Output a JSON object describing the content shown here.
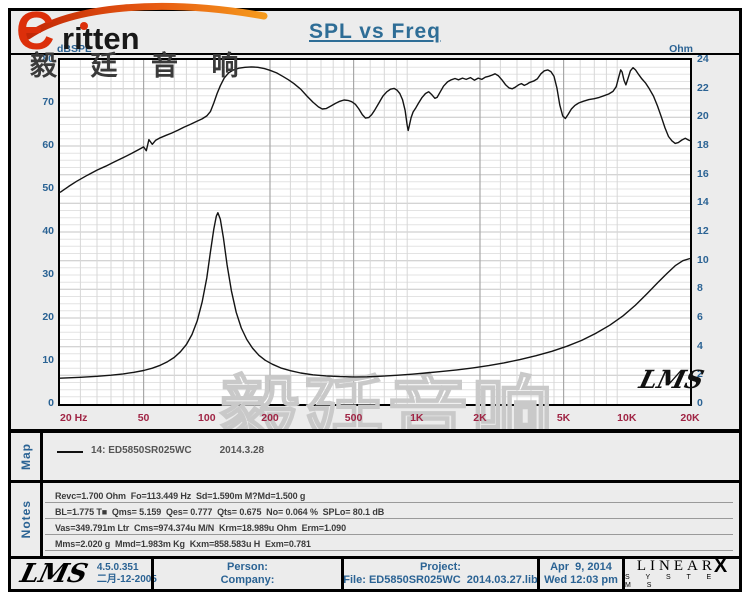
{
  "brand": {
    "glyph": "Є",
    "wordmark": "ritten",
    "cn_text": "毅 廷 音 响"
  },
  "header": {
    "title": "SPL vs Freq"
  },
  "chart_data": {
    "type": "line",
    "title": "SPL vs Freq",
    "watermark": "毅廷音响",
    "signature": "LMS",
    "x_axis": {
      "label": "Hz",
      "scale": "log",
      "min": 20,
      "max": 20000,
      "tick_values": [
        20,
        50,
        100,
        200,
        500,
        1000,
        2000,
        5000,
        10000,
        20000
      ],
      "tick_labels": [
        "20 Hz",
        "50",
        "100",
        "200",
        "500",
        "1K",
        "2K",
        "5K",
        "10K",
        "20K"
      ]
    },
    "y_left": {
      "label": "dBSPL",
      "min": 0,
      "max": 80,
      "ticks": [
        80,
        70,
        60,
        50,
        40,
        30,
        20,
        10,
        0
      ]
    },
    "y_right": {
      "label": "Ohm",
      "min": 0,
      "max": 24,
      "ticks": [
        24,
        22,
        20,
        18,
        16,
        14,
        12,
        10,
        8,
        6,
        4,
        2,
        0
      ]
    },
    "series": [
      {
        "name": "SPL (dB)",
        "axis": "left",
        "points": [
          [
            20,
            49.2
          ],
          [
            22,
            50.6
          ],
          [
            24,
            51.8
          ],
          [
            27,
            53.2
          ],
          [
            30,
            54.4
          ],
          [
            33,
            55.3
          ],
          [
            36,
            56.2
          ],
          [
            40,
            57.3
          ],
          [
            44,
            58.3
          ],
          [
            48,
            59.3
          ],
          [
            50,
            59.8
          ],
          [
            51.5,
            58.9
          ],
          [
            53,
            61.5
          ],
          [
            55,
            60.4
          ],
          [
            57,
            61.3
          ],
          [
            60,
            61.9
          ],
          [
            64,
            62.5
          ],
          [
            68,
            63
          ],
          [
            73,
            63.7
          ],
          [
            78,
            64.4
          ],
          [
            84,
            65.1
          ],
          [
            90,
            65.8
          ],
          [
            95,
            66.3
          ],
          [
            100,
            67
          ],
          [
            104,
            68
          ],
          [
            108,
            70
          ],
          [
            112,
            72.2
          ],
          [
            116,
            74
          ],
          [
            121,
            75.8
          ],
          [
            127,
            77
          ],
          [
            134,
            77.7
          ],
          [
            142,
            78.1
          ],
          [
            152,
            78.3
          ],
          [
            163,
            78.4
          ],
          [
            175,
            78.3
          ],
          [
            188,
            78
          ],
          [
            200,
            77.6
          ],
          [
            215,
            77
          ],
          [
            230,
            76.2
          ],
          [
            245,
            75.4
          ],
          [
            260,
            74.5
          ],
          [
            280,
            73.2
          ],
          [
            300,
            71.6
          ],
          [
            320,
            70.2
          ],
          [
            340,
            69.1
          ],
          [
            355,
            68.6
          ],
          [
            370,
            68.7
          ],
          [
            390,
            69.3
          ],
          [
            410,
            69.9
          ],
          [
            430,
            70.4
          ],
          [
            450,
            70.7
          ],
          [
            470,
            70.6
          ],
          [
            490,
            70.3
          ],
          [
            510,
            69.7
          ],
          [
            530,
            68.6
          ],
          [
            550,
            67.3
          ],
          [
            570,
            66.5
          ],
          [
            590,
            66.6
          ],
          [
            610,
            67.3
          ],
          [
            630,
            68.3
          ],
          [
            660,
            70
          ],
          [
            690,
            71.6
          ],
          [
            720,
            72.6
          ],
          [
            750,
            73.2
          ],
          [
            780,
            73.4
          ],
          [
            805,
            73
          ],
          [
            830,
            72.2
          ],
          [
            855,
            70.8
          ],
          [
            880,
            68.3
          ],
          [
            900,
            64.8
          ],
          [
            910,
            63.6
          ],
          [
            920,
            64.6
          ],
          [
            940,
            66.6
          ],
          [
            960,
            67.9
          ],
          [
            990,
            68.9
          ],
          [
            1020,
            70
          ],
          [
            1060,
            71.3
          ],
          [
            1100,
            72.2
          ],
          [
            1140,
            72.6
          ],
          [
            1180,
            71.9
          ],
          [
            1220,
            71.1
          ],
          [
            1250,
            71.3
          ],
          [
            1290,
            72.5
          ],
          [
            1340,
            73.9
          ],
          [
            1400,
            74.9
          ],
          [
            1460,
            75.4
          ],
          [
            1520,
            75.7
          ],
          [
            1580,
            75.4
          ],
          [
            1650,
            75.8
          ],
          [
            1720,
            75.5
          ],
          [
            1800,
            75.9
          ],
          [
            1880,
            75.3
          ],
          [
            1960,
            75.8
          ],
          [
            2040,
            75.5
          ],
          [
            2120,
            76
          ],
          [
            2200,
            76.2
          ],
          [
            2280,
            76.5
          ],
          [
            2360,
            76.8
          ],
          [
            2450,
            76.3
          ],
          [
            2550,
            75.3
          ],
          [
            2650,
            74.2
          ],
          [
            2750,
            73.5
          ],
          [
            2850,
            73.3
          ],
          [
            2950,
            73.7
          ],
          [
            3050,
            74.2
          ],
          [
            3150,
            74.5
          ],
          [
            3250,
            74.1
          ],
          [
            3350,
            74.4
          ],
          [
            3450,
            74.8
          ],
          [
            3600,
            75.1
          ],
          [
            3750,
            75.6
          ],
          [
            3900,
            76.8
          ],
          [
            4050,
            77.5
          ],
          [
            4200,
            77.7
          ],
          [
            4350,
            77.3
          ],
          [
            4500,
            76.2
          ],
          [
            4650,
            73.5
          ],
          [
            4800,
            69.5
          ],
          [
            4950,
            67
          ],
          [
            5100,
            66.4
          ],
          [
            5250,
            67.3
          ],
          [
            5450,
            68.6
          ],
          [
            5650,
            69.4
          ],
          [
            5900,
            70
          ],
          [
            6200,
            70.4
          ],
          [
            6600,
            70.8
          ],
          [
            7000,
            71
          ],
          [
            7400,
            71.3
          ],
          [
            7800,
            71.7
          ],
          [
            8200,
            72.1
          ],
          [
            8600,
            72.7
          ],
          [
            8900,
            73.8
          ],
          [
            9150,
            76
          ],
          [
            9350,
            77.7
          ],
          [
            9500,
            77.2
          ],
          [
            9700,
            75.3
          ],
          [
            9900,
            74.2
          ],
          [
            10100,
            75.5
          ],
          [
            10400,
            77.5
          ],
          [
            10700,
            78.2
          ],
          [
            11000,
            77.7
          ],
          [
            11400,
            76.6
          ],
          [
            11800,
            75.6
          ],
          [
            12300,
            74.6
          ],
          [
            12800,
            73.3
          ],
          [
            13400,
            71.6
          ],
          [
            14000,
            69.3
          ],
          [
            14600,
            66.8
          ],
          [
            15200,
            64.2
          ],
          [
            15800,
            62.2
          ],
          [
            16400,
            61.2
          ],
          [
            17000,
            60.6
          ],
          [
            17600,
            60.8
          ],
          [
            18300,
            61.4
          ],
          [
            19000,
            61.8
          ],
          [
            19500,
            61.5
          ],
          [
            20000,
            61.2
          ]
        ]
      },
      {
        "name": "Impedance (Ohm)",
        "axis": "right",
        "points": [
          [
            20,
            1.8
          ],
          [
            25,
            1.86
          ],
          [
            30,
            1.93
          ],
          [
            35,
            2.01
          ],
          [
            40,
            2.1
          ],
          [
            45,
            2.21
          ],
          [
            50,
            2.34
          ],
          [
            55,
            2.5
          ],
          [
            60,
            2.7
          ],
          [
            65,
            2.95
          ],
          [
            70,
            3.25
          ],
          [
            75,
            3.65
          ],
          [
            80,
            4.15
          ],
          [
            85,
            4.85
          ],
          [
            90,
            5.8
          ],
          [
            95,
            7.1
          ],
          [
            100,
            8.8
          ],
          [
            104,
            10.6
          ],
          [
            108,
            12.2
          ],
          [
            111,
            13.1
          ],
          [
            113,
            13.35
          ],
          [
            116,
            12.9
          ],
          [
            120,
            11.6
          ],
          [
            125,
            9.7
          ],
          [
            131,
            7.9
          ],
          [
            138,
            6.4
          ],
          [
            146,
            5.3
          ],
          [
            155,
            4.5
          ],
          [
            165,
            3.9
          ],
          [
            177,
            3.4
          ],
          [
            190,
            3.05
          ],
          [
            205,
            2.78
          ],
          [
            225,
            2.52
          ],
          [
            250,
            2.32
          ],
          [
            280,
            2.16
          ],
          [
            320,
            2.04
          ],
          [
            370,
            1.96
          ],
          [
            430,
            1.91
          ],
          [
            500,
            1.89
          ],
          [
            580,
            1.9
          ],
          [
            680,
            1.94
          ],
          [
            800,
            2
          ],
          [
            950,
            2.08
          ],
          [
            1100,
            2.16
          ],
          [
            1300,
            2.26
          ],
          [
            1550,
            2.38
          ],
          [
            1850,
            2.52
          ],
          [
            2200,
            2.68
          ],
          [
            2600,
            2.87
          ],
          [
            3100,
            3.1
          ],
          [
            3700,
            3.37
          ],
          [
            4400,
            3.68
          ],
          [
            5200,
            4.03
          ],
          [
            6100,
            4.44
          ],
          [
            7100,
            4.92
          ],
          [
            8300,
            5.5
          ],
          [
            9600,
            6.15
          ],
          [
            11000,
            6.9
          ],
          [
            12500,
            7.7
          ],
          [
            14000,
            8.45
          ],
          [
            15500,
            9.1
          ],
          [
            17000,
            9.65
          ],
          [
            18500,
            10
          ],
          [
            20000,
            10.15
          ]
        ]
      }
    ]
  },
  "map": {
    "label": "Map",
    "legend_name": "14: ED5850SR025WC",
    "legend_date": "2014.3.28"
  },
  "notes": {
    "label": "Notes",
    "lines": [
      "Revc=1.700 Ohm  Fo=113.449 Hz  Sd=1.590m M?Md=1.500 g",
      "BL=1.775 T■  Qms= 5.159  Qes= 0.777  Qts= 0.675  No= 0.064 %  SPLo= 80.1 dB",
      "Vas=349.791m Ltr  Cms=974.374u M/N  Krm=18.989u Ohm  Erm=1.090",
      "Mms=2.020 g  Mmd=1.983m Kg  Kxm=858.583u H  Exm=0.781"
    ]
  },
  "footer": {
    "lms_logo": "LMS",
    "version": "4.5.0.351",
    "version_date": "二月-12-2005",
    "person_label": "Person:",
    "company_label": "Company:",
    "project_label": "Project:",
    "file_text": "File: ED5850SR025WC  2014.03.27.lib",
    "date": "Apr  9, 2014",
    "time": "Wed 12:03 pm",
    "linearx_word": "LINEAR",
    "linearx_x": "X",
    "linearx_sub": "S  Y  S  T  E  M  S"
  },
  "colors": {
    "blue": "#2b6394",
    "crimson": "#a02545",
    "curve": "#141414",
    "grid_minor_h": "#e3e3e3",
    "grid_major_h": "#c6c6c6",
    "grid_minor_v": "#d7d7d7",
    "grid_major_v": "#a8a8a8",
    "watermark": "#c9c9c9",
    "logo_red": "#dc2f0a"
  }
}
